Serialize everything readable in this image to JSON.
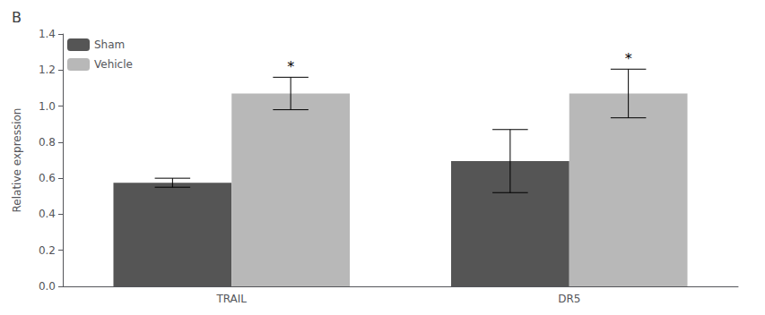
{
  "chart_data": {
    "type": "bar",
    "title": "B",
    "categories": [
      "TRAIL",
      "DR5"
    ],
    "series": [
      {
        "name": "Sham",
        "color": "#555555",
        "values": [
          0.575,
          0.695
        ],
        "errors": [
          0.025,
          0.175
        ]
      },
      {
        "name": "Vehicle",
        "color": "#b8b8b8",
        "values": [
          1.07,
          1.07
        ],
        "errors": [
          0.09,
          0.135
        ]
      }
    ],
    "ylabel": "Relative expression",
    "ylim": [
      0,
      1.4
    ],
    "yticks": [
      {
        "value": 0,
        "label": "0.0"
      },
      0.2,
      0.4,
      0.6,
      0.8,
      {
        "value": 1.0,
        "label": "1.0"
      },
      1.2,
      1.4
    ],
    "legend": "upper left",
    "grid": false,
    "annotations": [
      {
        "text": "*",
        "category": "TRAIL",
        "series": "Vehicle",
        "color": "#000000"
      },
      {
        "text": "*",
        "category": "DR5",
        "series": "Vehicle",
        "color": "#000000"
      }
    ]
  }
}
